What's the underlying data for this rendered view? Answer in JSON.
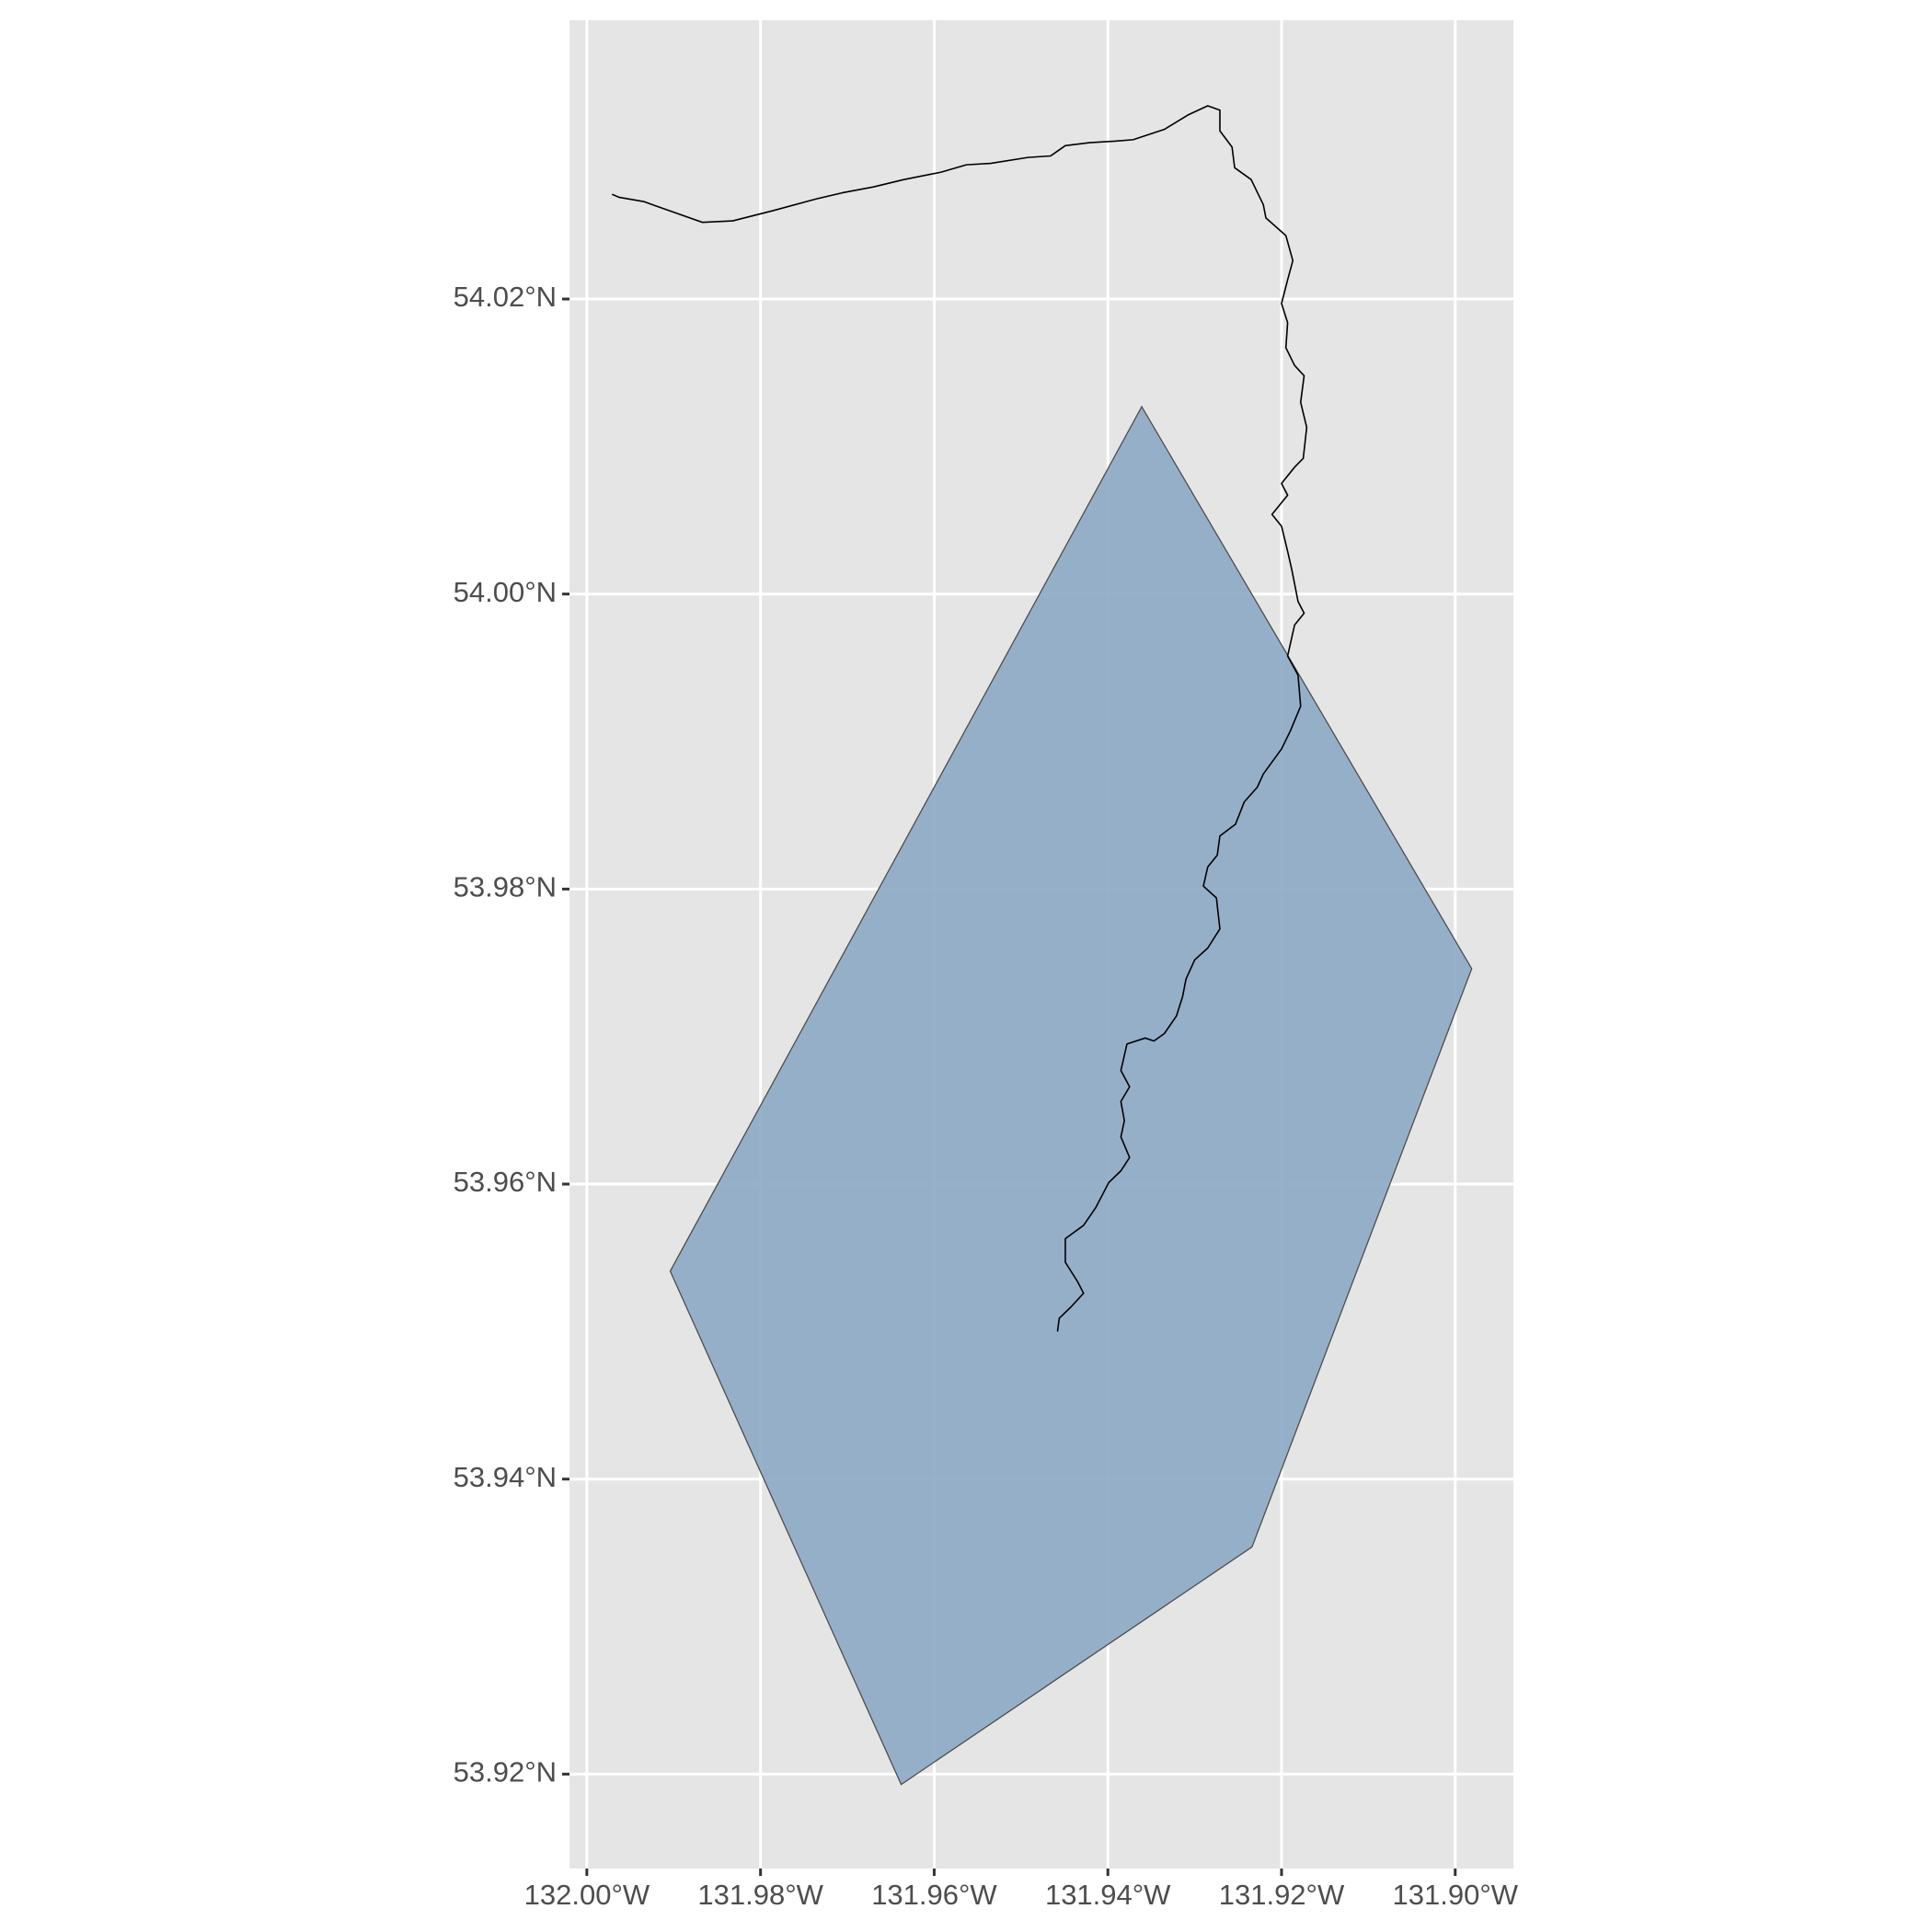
{
  "chart_data": {
    "type": "map",
    "xlim": [
      -132.002,
      -131.8933
    ],
    "ylim": [
      53.9136,
      54.0389
    ],
    "xticks": [
      {
        "value": -132.0,
        "label": "132.00°W"
      },
      {
        "value": -131.98,
        "label": "131.98°W"
      },
      {
        "value": -131.96,
        "label": "131.96°W"
      },
      {
        "value": -131.94,
        "label": "131.94°W"
      },
      {
        "value": -131.92,
        "label": "131.92°W"
      },
      {
        "value": -131.9,
        "label": "131.90°W"
      }
    ],
    "yticks": [
      {
        "value": 53.92,
        "label": "53.92°N"
      },
      {
        "value": 53.94,
        "label": "53.94°N"
      },
      {
        "value": 53.96,
        "label": "53.96°N"
      },
      {
        "value": 53.98,
        "label": "53.98°N"
      },
      {
        "value": 54.0,
        "label": "54.00°N"
      },
      {
        "value": 54.02,
        "label": "54.02°N"
      }
    ],
    "grid": true,
    "polygon": {
      "color": "#8faac7",
      "x": [
        -131.9361,
        -131.8981,
        -131.9234,
        -131.9638,
        -131.9904
      ],
      "y": [
        54.0127,
        53.9746,
        53.9354,
        53.9193,
        53.9541
      ]
    },
    "line": {
      "color": "#000000",
      "x": [
        -131.9971,
        -131.9963,
        -131.9934,
        -131.992,
        -131.9867,
        -131.9832,
        -131.9785,
        -131.9735,
        -131.9706,
        -131.967,
        -131.9635,
        -131.9592,
        -131.9563,
        -131.9535,
        -131.9492,
        -131.9466,
        -131.9449,
        -131.9421,
        -131.9392,
        -131.9371,
        -131.9335,
        -131.9307,
        -131.9285,
        -131.9271,
        -131.9271,
        -131.9257,
        -131.9254,
        -131.9235,
        -131.9221,
        -131.9218,
        -131.9195,
        -131.9187,
        -131.9193,
        -131.92,
        -131.9193,
        -131.9195,
        -131.9185,
        -131.9174,
        -131.9178,
        -131.9171,
        -131.9175,
        -131.9185,
        -131.92,
        -131.9193,
        -131.9211,
        -131.92,
        -131.9193,
        -131.9188,
        -131.9181,
        -131.9174,
        -131.9185,
        -131.9193,
        -131.9181,
        -131.9178,
        -131.919,
        -131.92,
        -131.9221,
        -131.9228,
        -131.9243,
        -131.9253,
        -131.9271,
        -131.9274,
        -131.9285,
        -131.929,
        -131.9275,
        -131.9271,
        -131.9285,
        -131.93,
        -131.931,
        -131.9314,
        -131.9321,
        -131.9335,
        -131.9347,
        -131.9357,
        -131.9378,
        -131.9385,
        -131.9375,
        -131.9385,
        -131.9381,
        -131.9385,
        -131.9375,
        -131.9385,
        -131.9399,
        -131.9414,
        -131.9428,
        -131.9449,
        -131.9449,
        -131.9435,
        -131.9428,
        -131.9442,
        -131.9456,
        -131.9458
      ],
      "y": [
        54.0271,
        54.0269,
        54.0266,
        54.0263,
        54.0252,
        54.0253,
        54.026,
        54.0268,
        54.0272,
        54.0276,
        54.0281,
        54.0286,
        54.0291,
        54.0292,
        54.0296,
        54.0297,
        54.0304,
        54.0306,
        54.0307,
        54.0308,
        54.0315,
        54.0325,
        54.0331,
        54.0328,
        54.0314,
        54.0303,
        54.0289,
        54.0281,
        54.0264,
        54.0255,
        54.0243,
        54.0226,
        54.0213,
        54.0197,
        54.0184,
        54.0167,
        54.0155,
        54.0148,
        54.013,
        54.0113,
        54.0092,
        54.0086,
        54.0075,
        54.0067,
        54.0054,
        54.0046,
        54.0029,
        54.0016,
        53.9995,
        53.9987,
        53.9979,
        53.9958,
        53.9945,
        53.9924,
        53.9907,
        53.9895,
        53.9878,
        53.9869,
        53.9859,
        53.9844,
        53.9836,
        53.9823,
        53.9815,
        53.9802,
        53.9794,
        53.9773,
        53.976,
        53.9752,
        53.9739,
        53.9727,
        53.9714,
        53.9702,
        53.9697,
        53.9699,
        53.9695,
        53.9677,
        53.9666,
        53.9656,
        53.9643,
        53.9632,
        53.9618,
        53.9609,
        53.9601,
        53.9584,
        53.9572,
        53.9563,
        53.9547,
        53.9534,
        53.9526,
        53.9517,
        53.9509,
        53.95
      ]
    }
  }
}
